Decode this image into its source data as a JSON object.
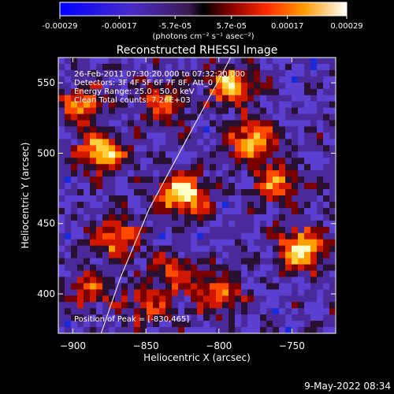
{
  "colorbar": {
    "tick_labels": [
      "-0.00029",
      "-0.00017",
      "-5.7e-05",
      "5.7e-05",
      "0.00017",
      "0.00029"
    ],
    "tick_values": [
      -0.00029,
      -0.00017,
      -5.7e-05,
      5.7e-05,
      0.00017,
      0.00029
    ],
    "range": [
      -0.00029,
      0.00029
    ],
    "units_text": "(photons cm⁻² s⁻¹ asec⁻²)"
  },
  "chart_data": {
    "type": "heatmap",
    "title": "Reconstructed RHESSI Image",
    "xlabel": "Heliocentric X (arcsec)",
    "ylabel": "Heliocentric Y (arcsec)",
    "xlim": [
      -910,
      -720
    ],
    "ylim": [
      372,
      568
    ],
    "x_ticks": [
      -900,
      -850,
      -800,
      -750
    ],
    "x_tick_labels": [
      "−900",
      "−850",
      "−800",
      "−750"
    ],
    "y_ticks": [
      400,
      450,
      500,
      550
    ],
    "y_tick_labels": [
      "400",
      "450",
      "500",
      "550"
    ],
    "annotations": [
      "26-Feb-2011 07:30:20.000 to 07:32:20.000",
      "Detectors: 3F 4F 5F 6F 7F 8F, Att_0",
      "Energy Range: 25.0 - 50.0 keV",
      "Clean     Total counts: 7.26E+03"
    ],
    "peak_label": "Position of Peak = [-830,465]",
    "peak": [
      -830,
      465
    ],
    "limb_curve": [
      [
        -882,
        368
      ],
      [
        -868,
        410
      ],
      [
        -848,
        460
      ],
      [
        -822,
        510
      ],
      [
        -796,
        560
      ],
      [
        -790,
        572
      ]
    ],
    "bright_sources": [
      {
        "x": -825,
        "y": 470,
        "strength": 1.0
      },
      {
        "x": -743,
        "y": 432,
        "strength": 0.95
      },
      {
        "x": -880,
        "y": 500,
        "strength": 0.85
      },
      {
        "x": -777,
        "y": 508,
        "strength": 0.75
      },
      {
        "x": -792,
        "y": 548,
        "strength": 0.8
      },
      {
        "x": -838,
        "y": 535,
        "strength": 0.55
      },
      {
        "x": -895,
        "y": 535,
        "strength": 0.6
      },
      {
        "x": -870,
        "y": 440,
        "strength": 0.65
      },
      {
        "x": -760,
        "y": 478,
        "strength": 0.6
      },
      {
        "x": -888,
        "y": 405,
        "strength": 0.5
      },
      {
        "x": -800,
        "y": 400,
        "strength": 0.6
      },
      {
        "x": -830,
        "y": 415,
        "strength": 0.55
      },
      {
        "x": -850,
        "y": 390,
        "strength": 0.45
      }
    ],
    "grid": false
  },
  "footer": {
    "timestamp": "9-May-2022 08:34"
  }
}
